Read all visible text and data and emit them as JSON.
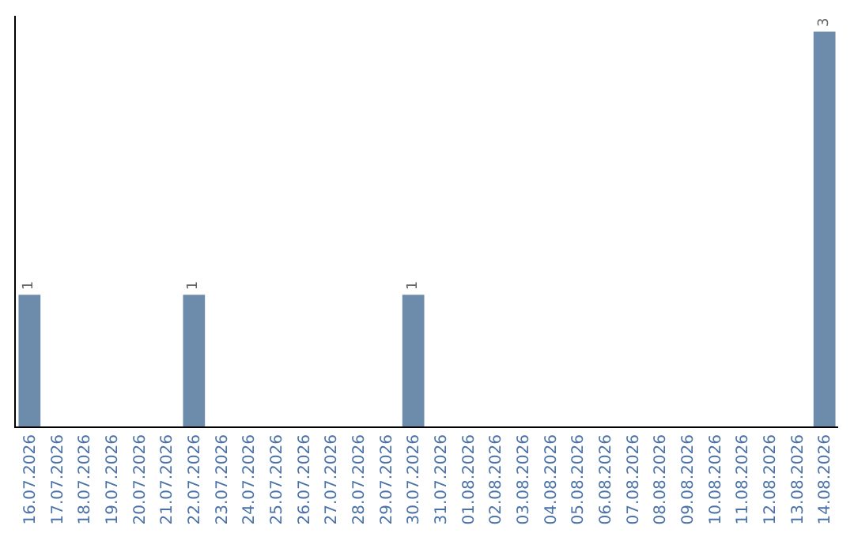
{
  "chart_data": {
    "type": "bar",
    "categories": [
      "16.07.2026",
      "17.07.2026",
      "18.07.2026",
      "19.07.2026",
      "20.07.2026",
      "21.07.2026",
      "22.07.2026",
      "23.07.2026",
      "24.07.2026",
      "25.07.2026",
      "26.07.2026",
      "27.07.2026",
      "28.07.2026",
      "29.07.2026",
      "30.07.2026",
      "31.07.2026",
      "01.08.2026",
      "02.08.2026",
      "03.08.2026",
      "04.08.2026",
      "05.08.2026",
      "06.08.2026",
      "07.08.2026",
      "08.08.2026",
      "09.08.2026",
      "10.08.2026",
      "11.08.2026",
      "12.08.2026",
      "13.08.2026",
      "14.08.2026"
    ],
    "values": [
      1,
      0,
      0,
      0,
      0,
      0,
      1,
      0,
      0,
      0,
      0,
      0,
      0,
      0,
      1,
      0,
      0,
      0,
      0,
      0,
      0,
      0,
      0,
      0,
      0,
      0,
      0,
      0,
      0,
      3
    ],
    "value_labels": [
      "1",
      null,
      null,
      null,
      null,
      null,
      "1",
      null,
      null,
      null,
      null,
      null,
      null,
      null,
      "1",
      null,
      null,
      null,
      null,
      null,
      null,
      null,
      null,
      null,
      null,
      null,
      null,
      null,
      null,
      "3"
    ],
    "color": "#6d8cab",
    "tick_labels": "x",
    "grid": false
  }
}
